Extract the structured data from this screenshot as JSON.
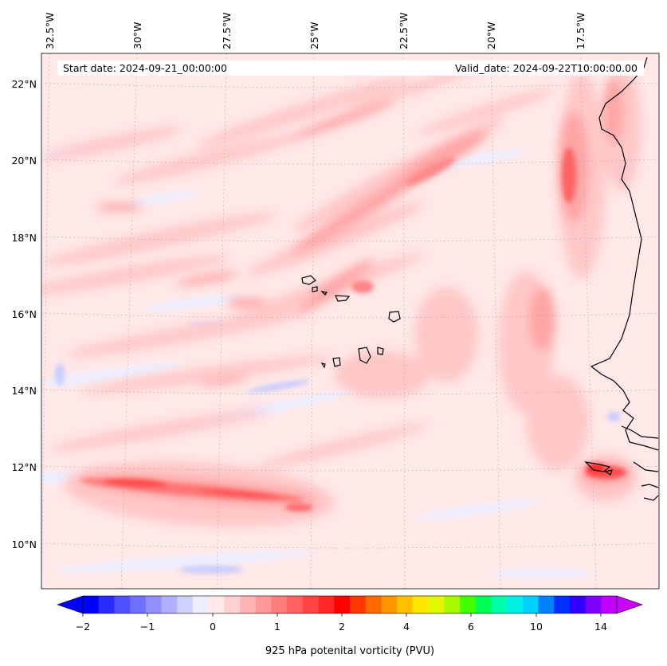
{
  "map": {
    "variable": "925 hPa potenital vorticity (PVU)",
    "start_date": "Start date: 2024-09-21_00:00:00",
    "valid_date": "Valid_date: 2024-09-22T10:00:00.00",
    "longitude_labels": [
      "32.5°W",
      "30°W",
      "27.5°W",
      "25°W",
      "22.5°W",
      "20°W",
      "17.5°W"
    ],
    "latitude_labels": [
      "22°N",
      "20°N",
      "18°N",
      "16°N",
      "14°N",
      "12°N",
      "10°N"
    ],
    "colorbar": {
      "tick_labels": [
        "−2",
        "−1",
        "0",
        "1",
        "2",
        "4",
        "6",
        "10",
        "14"
      ],
      "colors": [
        "#0000ff",
        "#2a2aff",
        "#5050ff",
        "#7070ff",
        "#9090ff",
        "#b0b0ff",
        "#d0d0ff",
        "#eeeeff",
        "#ffe8e8",
        "#ffd0d0",
        "#ffb4b4",
        "#ff9898",
        "#ff7c7c",
        "#ff6060",
        "#ff4444",
        "#ff2828",
        "#ff0000",
        "#ff3a00",
        "#ff6a00",
        "#ff9600",
        "#ffc000",
        "#ffe800",
        "#e0f800",
        "#a8f800",
        "#40ff00",
        "#00ff50",
        "#00ffa8",
        "#00f0e8",
        "#00d0ff",
        "#0080ff",
        "#0030ff",
        "#3000ff",
        "#8000ff",
        "#c000ff"
      ],
      "under_color": "#0000ff",
      "over_color": "#cc00ff"
    },
    "background_color": "#ffe8e8"
  }
}
